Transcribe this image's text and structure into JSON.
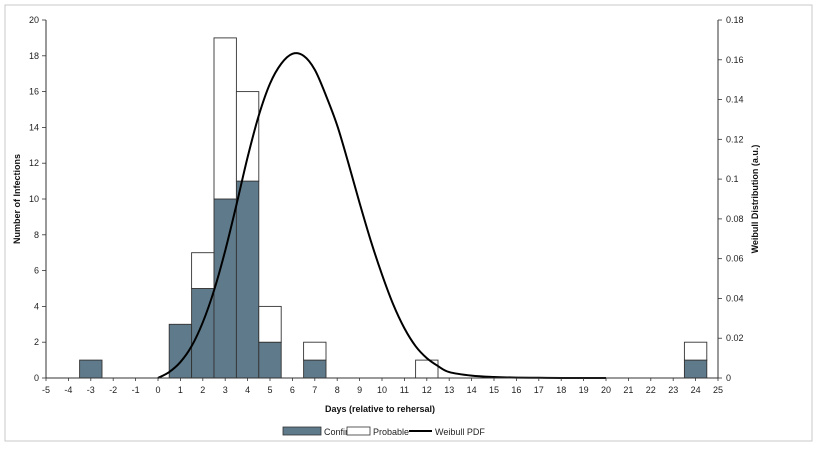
{
  "chart_data": {
    "type": "bar",
    "title": "",
    "xlabel": "Days (relative to rehersal)",
    "ylabel": "Number of Infections",
    "y2label": "Weibull  Distribution (a.u.)",
    "xlim": [
      -5,
      25
    ],
    "ylim": [
      0,
      20
    ],
    "y2lim": [
      0,
      0.18
    ],
    "x_ticks": [
      -5,
      -4,
      -3,
      -2,
      -1,
      0,
      1,
      2,
      3,
      4,
      5,
      6,
      7,
      8,
      9,
      10,
      11,
      12,
      13,
      14,
      15,
      16,
      17,
      18,
      19,
      20,
      21,
      22,
      23,
      24,
      25
    ],
    "y_ticks": [
      0,
      2,
      4,
      6,
      8,
      10,
      12,
      14,
      16,
      18,
      20
    ],
    "y2_ticks": [
      0,
      0.02,
      0.04,
      0.06,
      0.08,
      0.1,
      0.12,
      0.14,
      0.16,
      0.18
    ],
    "stacked": true,
    "categories": [
      -3,
      1,
      2,
      3,
      4,
      5,
      7,
      12,
      24
    ],
    "series": [
      {
        "name": "Confirmed",
        "color": "#5f7a8a",
        "values": [
          1,
          3,
          5,
          10,
          11,
          2,
          1,
          0,
          1
        ]
      },
      {
        "name": "Probable",
        "color": "#ffffff",
        "values": [
          0,
          0,
          2,
          9,
          5,
          2,
          1,
          1,
          1
        ]
      }
    ],
    "line_series": {
      "name": "Weibull PDF",
      "axis": "right",
      "color": "#000000",
      "x": [
        0,
        0.5,
        1,
        1.5,
        2,
        2.5,
        3,
        3.5,
        4,
        4.5,
        5,
        5.5,
        6,
        6.5,
        7,
        7.5,
        8,
        8.5,
        9,
        9.5,
        10,
        10.5,
        11,
        11.5,
        12,
        12.5,
        13,
        14,
        15,
        16,
        17,
        18,
        19,
        20
      ],
      "y": [
        0,
        0.003,
        0.008,
        0.016,
        0.028,
        0.044,
        0.064,
        0.087,
        0.111,
        0.132,
        0.148,
        0.158,
        0.163,
        0.162,
        0.155,
        0.142,
        0.127,
        0.108,
        0.088,
        0.069,
        0.052,
        0.037,
        0.025,
        0.016,
        0.01,
        0.006,
        0.003,
        0.0012,
        0.0005,
        0.0002,
        0.0001,
        0,
        0,
        0
      ]
    },
    "legend": [
      "Confirmed",
      "Probable",
      "Weibull PDF"
    ],
    "legend_position": "bottom",
    "grid": false
  }
}
